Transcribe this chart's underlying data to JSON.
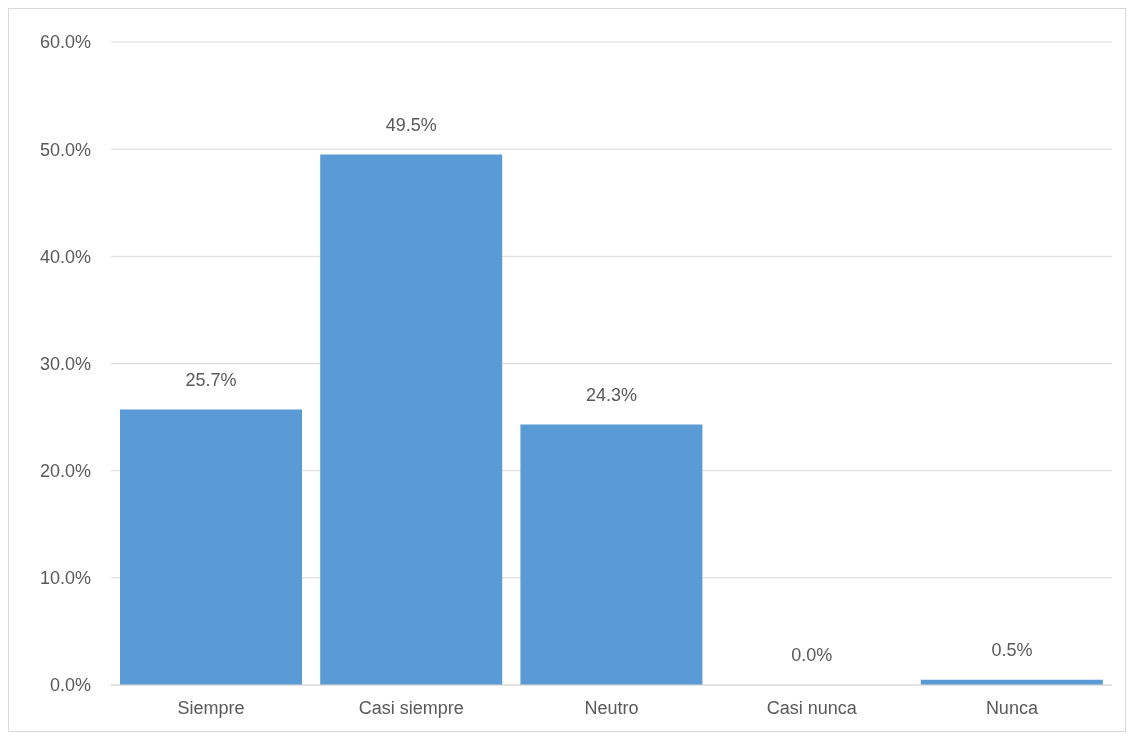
{
  "chart_data": {
    "type": "bar",
    "categories": [
      "Siempre",
      "Casi siempre",
      "Neutro",
      "Casi nunca",
      "Nunca"
    ],
    "values": [
      25.7,
      49.5,
      24.3,
      0.0,
      0.5
    ],
    "color": "#5b9bd5",
    "value_labels": [
      "25.7%",
      "49.5%",
      "24.3%",
      "0.0%",
      "0.5%"
    ],
    "ylim": [
      0,
      60
    ],
    "yticks": [
      {
        "value": 0,
        "label": "0.0%"
      },
      {
        "value": 10,
        "label": "10.0%"
      },
      {
        "value": 20,
        "label": "20.0%"
      },
      {
        "value": 30,
        "label": "30.0%"
      },
      {
        "value": 40,
        "label": "40.0%"
      },
      {
        "value": 50,
        "label": "50.0%"
      },
      {
        "value": 60,
        "label": "60.0%"
      }
    ],
    "grid": "y",
    "legend": false
  }
}
